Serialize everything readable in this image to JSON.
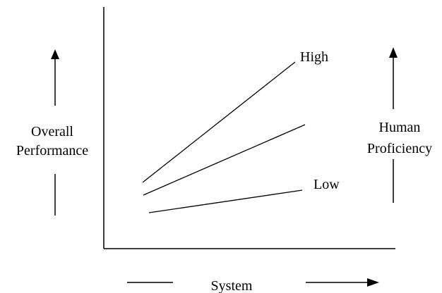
{
  "diagram": {
    "left_label": {
      "line1": "Overall",
      "line2": "Performance"
    },
    "right_label": {
      "line1": "Human",
      "line2": "Proficiency"
    },
    "x_label": "System",
    "lines": [
      {
        "label": "High"
      },
      {
        "label": ""
      },
      {
        "label": "Low"
      }
    ],
    "colors": {
      "ink": "#000000",
      "background": "#ffffff"
    }
  }
}
